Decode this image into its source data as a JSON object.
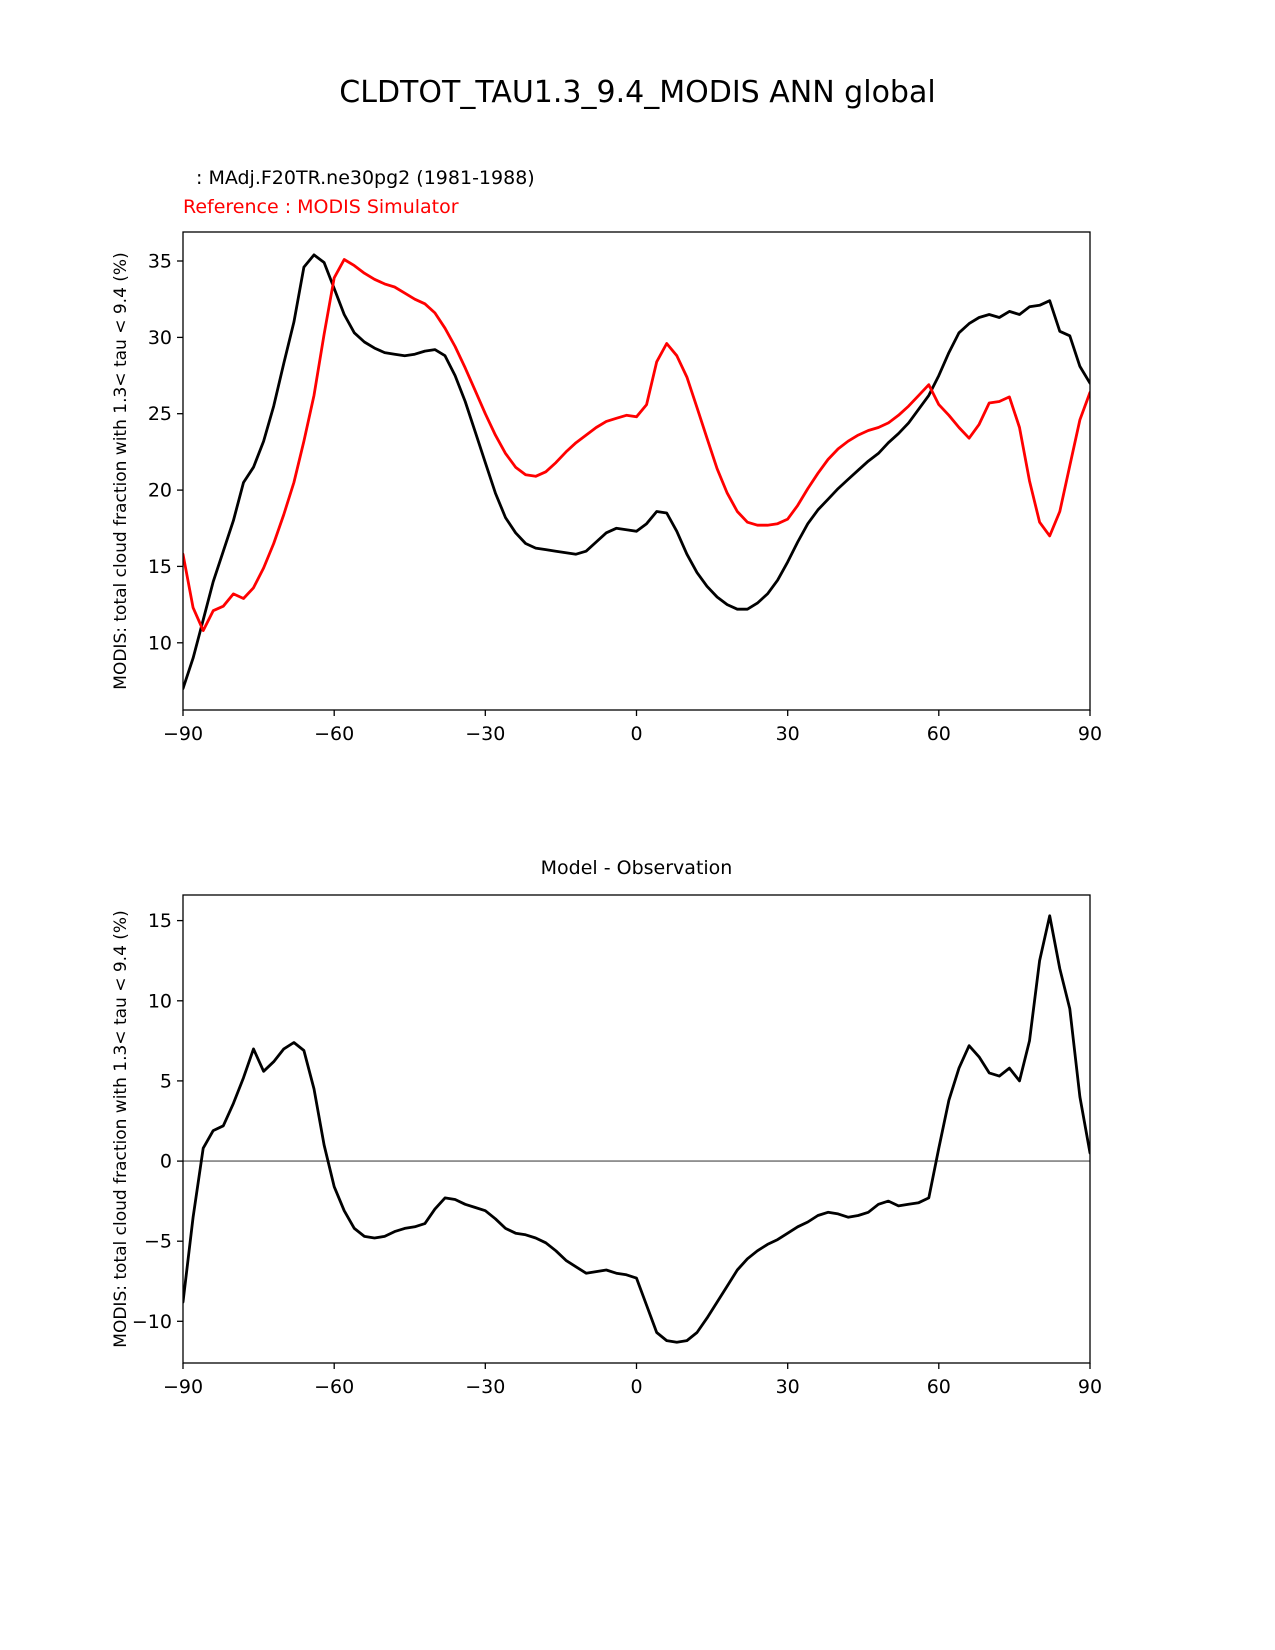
{
  "title": "CLDTOT_TAU1.3_9.4_MODIS ANN global",
  "top_chart": {
    "legend_model": ": MAdj.F20TR.ne30pg2 (1981-1988)",
    "legend_model_color": "#000000",
    "legend_reference": "Reference : MODIS Simulator",
    "legend_reference_color": "#ff0000",
    "ylabel": "MODIS: total cloud fraction with 1.3< tau < 9.4 (%)"
  },
  "bottom_chart": {
    "title": "Model - Observation",
    "ylabel": "MODIS: total cloud fraction with 1.3< tau < 9.4 (%)"
  },
  "chart_data": [
    {
      "type": "line",
      "title": "CLDTOT_TAU1.3_9.4_MODIS ANN global",
      "xlabel": "",
      "ylabel": "MODIS: total cloud fraction with 1.3< tau < 9.4 (%)",
      "legend_position": "top-left, above axes",
      "grid": false,
      "xlim": [
        -90,
        90
      ],
      "ylim": [
        5.6,
        36.9
      ],
      "xtick_values": [
        -90,
        -60,
        -30,
        0,
        30,
        60,
        90
      ],
      "xtick_labels": [
        "−90",
        "−60",
        "−30",
        "0",
        "30",
        "60",
        "90"
      ],
      "ytick_values": [
        10,
        15,
        20,
        25,
        30,
        35
      ],
      "ytick_labels": [
        "10",
        "15",
        "20",
        "25",
        "30",
        "35"
      ],
      "x": [
        -90,
        -88,
        -86,
        -84,
        -82,
        -80,
        -78,
        -76,
        -74,
        -72,
        -70,
        -68,
        -66,
        -64,
        -62,
        -60,
        -58,
        -56,
        -54,
        -52,
        -50,
        -48,
        -46,
        -44,
        -42,
        -40,
        -38,
        -36,
        -34,
        -32,
        -30,
        -28,
        -26,
        -24,
        -22,
        -20,
        -18,
        -16,
        -14,
        -12,
        -10,
        -8,
        -6,
        -4,
        -2,
        0,
        2,
        4,
        6,
        8,
        10,
        12,
        14,
        16,
        18,
        20,
        22,
        24,
        26,
        28,
        30,
        32,
        34,
        36,
        38,
        40,
        42,
        44,
        46,
        48,
        50,
        52,
        54,
        56,
        58,
        60,
        62,
        64,
        66,
        68,
        70,
        72,
        74,
        76,
        78,
        80,
        82,
        84,
        86,
        88,
        90
      ],
      "series": [
        {
          "name": "MAdj.F20TR.ne30pg2 (1981-1988)",
          "color": "#000000",
          "values": [
            7.0,
            9.0,
            11.5,
            14.0,
            16.0,
            18.0,
            20.5,
            21.5,
            23.2,
            25.5,
            28.3,
            31.0,
            34.6,
            35.4,
            34.9,
            33.2,
            31.5,
            30.3,
            29.7,
            29.3,
            29.0,
            28.9,
            28.8,
            28.9,
            29.1,
            29.2,
            28.8,
            27.5,
            25.8,
            23.8,
            21.8,
            19.8,
            18.2,
            17.2,
            16.5,
            16.2,
            16.1,
            16.0,
            15.9,
            15.8,
            16.0,
            16.6,
            17.2,
            17.5,
            17.4,
            17.3,
            17.8,
            18.6,
            18.5,
            17.3,
            15.8,
            14.6,
            13.7,
            13.0,
            12.5,
            12.2,
            12.2,
            12.6,
            13.2,
            14.1,
            15.3,
            16.6,
            17.8,
            18.7,
            19.4,
            20.1,
            20.7,
            21.3,
            21.9,
            22.4,
            23.1,
            23.7,
            24.4,
            25.3,
            26.2,
            27.5,
            29.0,
            30.3,
            30.9,
            31.3,
            31.5,
            31.3,
            31.7,
            31.5,
            32.0,
            32.1,
            32.4,
            30.4,
            30.1,
            28.1,
            27.0
          ]
        },
        {
          "name": "MODIS Simulator",
          "color": "#ff0000",
          "values": [
            15.8,
            12.3,
            10.8,
            12.1,
            12.4,
            13.2,
            12.9,
            13.6,
            14.9,
            16.5,
            18.4,
            20.5,
            23.2,
            26.2,
            30.2,
            33.9,
            35.1,
            34.7,
            34.2,
            33.8,
            33.5,
            33.3,
            32.9,
            32.5,
            32.2,
            31.6,
            30.6,
            29.4,
            28.0,
            26.5,
            25.0,
            23.6,
            22.4,
            21.5,
            21.0,
            20.9,
            21.2,
            21.8,
            22.5,
            23.1,
            23.6,
            24.1,
            24.5,
            24.7,
            24.9,
            24.8,
            25.6,
            28.4,
            29.6,
            28.8,
            27.4,
            25.4,
            23.4,
            21.4,
            19.8,
            18.6,
            17.9,
            17.7,
            17.7,
            17.8,
            18.1,
            19.0,
            20.1,
            21.1,
            22.0,
            22.7,
            23.2,
            23.6,
            23.9,
            24.1,
            24.4,
            24.9,
            25.5,
            26.2,
            26.9,
            25.6,
            24.9,
            24.1,
            23.4,
            24.3,
            25.7,
            25.8,
            26.1,
            24.1,
            20.6,
            17.9,
            17.0,
            18.6,
            21.6,
            24.6,
            26.4
          ]
        }
      ]
    },
    {
      "type": "line",
      "title": "Model - Observation",
      "xlabel": "",
      "ylabel": "MODIS: total cloud fraction with 1.3< tau < 9.4 (%)",
      "grid": false,
      "zero_line": true,
      "zero_line_color": "#808080",
      "xlim": [
        -90,
        90
      ],
      "ylim": [
        -12.6,
        16.6
      ],
      "xtick_values": [
        -90,
        -60,
        -30,
        0,
        30,
        60,
        90
      ],
      "xtick_labels": [
        "−90",
        "−60",
        "−30",
        "0",
        "30",
        "60",
        "90"
      ],
      "ytick_values": [
        -10,
        -5,
        0,
        5,
        10,
        15
      ],
      "ytick_labels": [
        "−10",
        "−5",
        "0",
        "5",
        "10",
        "15"
      ],
      "x": [
        -90,
        -88,
        -86,
        -84,
        -82,
        -80,
        -78,
        -76,
        -74,
        -72,
        -70,
        -68,
        -66,
        -64,
        -62,
        -60,
        -58,
        -56,
        -54,
        -52,
        -50,
        -48,
        -46,
        -44,
        -42,
        -40,
        -38,
        -36,
        -34,
        -32,
        -30,
        -28,
        -26,
        -24,
        -22,
        -20,
        -18,
        -16,
        -14,
        -12,
        -10,
        -8,
        -6,
        -4,
        -2,
        0,
        2,
        4,
        6,
        8,
        10,
        12,
        14,
        16,
        18,
        20,
        22,
        24,
        26,
        28,
        30,
        32,
        34,
        36,
        38,
        40,
        42,
        44,
        46,
        48,
        50,
        52,
        54,
        56,
        58,
        60,
        62,
        64,
        66,
        68,
        70,
        72,
        74,
        76,
        78,
        80,
        82,
        84,
        86,
        88,
        90
      ],
      "series": [
        {
          "name": "Model - Observation",
          "color": "#000000",
          "values": [
            -8.8,
            -3.5,
            0.8,
            1.9,
            2.2,
            3.6,
            5.2,
            7.0,
            5.6,
            6.2,
            7.0,
            7.4,
            6.9,
            4.5,
            1.0,
            -1.6,
            -3.1,
            -4.2,
            -4.7,
            -4.8,
            -4.7,
            -4.4,
            -4.2,
            -4.1,
            -3.9,
            -3.0,
            -2.3,
            -2.4,
            -2.7,
            -2.9,
            -3.1,
            -3.6,
            -4.2,
            -4.5,
            -4.6,
            -4.8,
            -5.1,
            -5.6,
            -6.2,
            -6.6,
            -7.0,
            -6.9,
            -6.8,
            -7.0,
            -7.1,
            -7.3,
            -9.0,
            -10.7,
            -11.2,
            -11.3,
            -11.2,
            -10.7,
            -9.8,
            -8.8,
            -7.8,
            -6.8,
            -6.1,
            -5.6,
            -5.2,
            -4.9,
            -4.5,
            -4.1,
            -3.8,
            -3.4,
            -3.2,
            -3.3,
            -3.5,
            -3.4,
            -3.2,
            -2.7,
            -2.5,
            -2.8,
            -2.7,
            -2.6,
            -2.3,
            0.8,
            3.8,
            5.8,
            7.2,
            6.5,
            5.5,
            5.3,
            5.8,
            5.0,
            7.5,
            12.5,
            15.3,
            12.0,
            9.5,
            4.0,
            0.5
          ]
        }
      ]
    }
  ]
}
